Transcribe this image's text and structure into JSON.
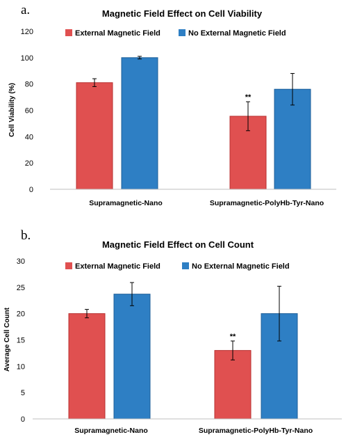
{
  "colors": {
    "external": "#e05050",
    "external_edge": "#b83232",
    "no_external": "#2e7fc4",
    "no_external_edge": "#1f5f98",
    "axis": "#bfbfbf"
  },
  "chart_data": [
    {
      "type": "bar",
      "panel": "a.",
      "title": "Magnetic Field Effect on Cell Viability",
      "xlabel": "",
      "ylabel": "Cell Viability (%)",
      "ylim": [
        0,
        120
      ],
      "yticks": [
        "0",
        "20",
        "40",
        "60",
        "80",
        "100",
        "120"
      ],
      "grid": false,
      "legend": "top",
      "categories": [
        "Supramagnetic-Nano",
        "Supramagnetic-PolyHb-Tyr-Nano"
      ],
      "series": [
        {
          "name": "External Magnetic Field",
          "values": [
            81,
            55.5
          ],
          "error": [
            3,
            11
          ],
          "significance": [
            "",
            "**"
          ]
        },
        {
          "name": "No External Magnetic Field",
          "values": [
            100,
            76
          ],
          "error": [
            1,
            12
          ],
          "significance": [
            "",
            ""
          ]
        }
      ]
    },
    {
      "type": "bar",
      "panel": "b.",
      "title": "Magnetic Field Effect on Cell Count",
      "xlabel": "",
      "ylabel": "Average Cell Count",
      "ylim": [
        0,
        30
      ],
      "yticks": [
        "0",
        "5",
        "10",
        "15",
        "20",
        "25",
        "30"
      ],
      "grid": false,
      "legend": "top",
      "categories": [
        "Supramagnetic-Nano",
        "Supramagnetic-PolyHb-Tyr-Nano"
      ],
      "series": [
        {
          "name": "External Magnetic Field",
          "values": [
            20,
            13
          ],
          "error": [
            0.8,
            1.8
          ],
          "significance": [
            "",
            "**"
          ]
        },
        {
          "name": "No External Magnetic Field",
          "values": [
            23.7,
            20
          ],
          "error": [
            2.2,
            5.2
          ],
          "significance": [
            "",
            ""
          ]
        }
      ]
    }
  ]
}
